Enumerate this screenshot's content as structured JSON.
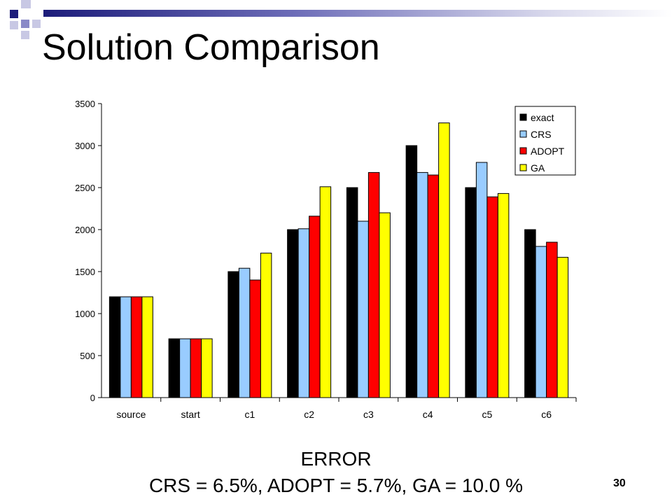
{
  "slide": {
    "title": "Solution Comparison",
    "error_label": "ERROR",
    "error_values": "CRS = 6.5%, ADOPT = 5.7%, GA = 10.0 %",
    "page_number": "30"
  },
  "theme": {
    "accent_dark": "#1c1c7a",
    "accent_mid": "#8a8ac8",
    "accent_light": "#c8c8e4"
  },
  "chart_data": {
    "type": "bar",
    "categories": [
      "source",
      "start",
      "c1",
      "c2",
      "c3",
      "c4",
      "c5",
      "c6"
    ],
    "series": [
      {
        "name": "exact",
        "color": "#000000",
        "values": [
          1200,
          700,
          1500,
          2000,
          2500,
          3000,
          2500,
          2000
        ]
      },
      {
        "name": "CRS",
        "color": "#99ccff",
        "values": [
          1200,
          700,
          1540,
          2010,
          2100,
          2680,
          2800,
          1800
        ]
      },
      {
        "name": "ADOPT",
        "color": "#ff0000",
        "values": [
          1200,
          700,
          1400,
          2160,
          2680,
          2650,
          2390,
          1850
        ]
      },
      {
        "name": "GA",
        "color": "#ffff00",
        "values": [
          1200,
          700,
          1720,
          2510,
          2200,
          3270,
          2430,
          1670
        ]
      }
    ],
    "ylim": [
      0,
      3500
    ],
    "yticks": [
      0,
      500,
      1000,
      1500,
      2000,
      2500,
      3000,
      3500
    ],
    "grid": false,
    "legend_position": "top-right",
    "xlabel": "",
    "ylabel": ""
  }
}
